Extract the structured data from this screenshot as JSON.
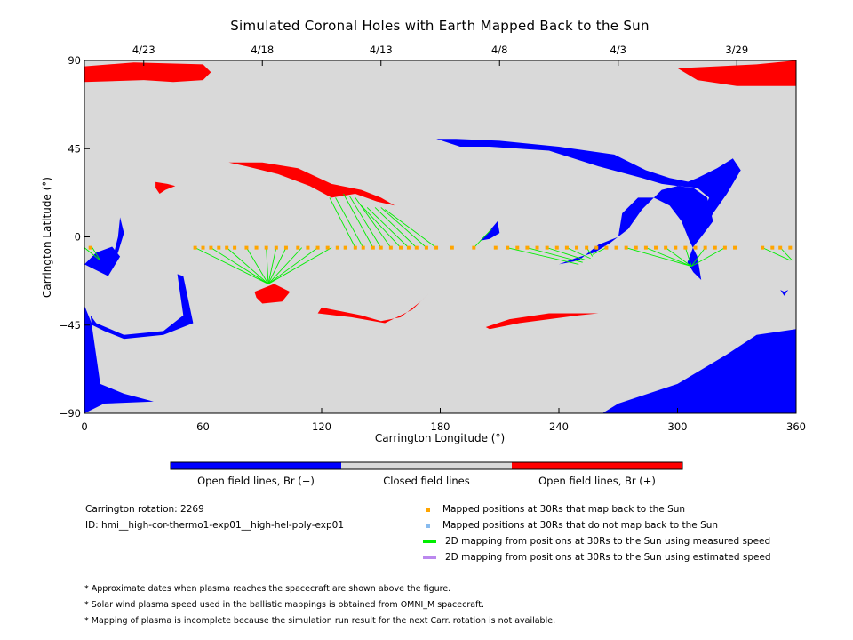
{
  "chart_data": {
    "type": "map",
    "title": "Simulated Coronal Holes with Earth Mapped Back to the Sun",
    "xlabel": "Carrington Longitude (°)",
    "ylabel": "Carrington Latitude (°)",
    "xlim": [
      0,
      360
    ],
    "ylim": [
      -90,
      90
    ],
    "x_ticks": [
      "0",
      "60",
      "120",
      "180",
      "240",
      "300",
      "360"
    ],
    "y_ticks": [
      "90",
      "45",
      "0",
      "−45",
      "−90"
    ],
    "top_axis_dates": [
      {
        "label": "4/23",
        "lon": 30
      },
      {
        "label": "4/18",
        "lon": 90
      },
      {
        "label": "4/13",
        "lon": 150
      },
      {
        "label": "4/8",
        "lon": 210
      },
      {
        "label": "4/3",
        "lon": 270
      },
      {
        "label": "3/29",
        "lon": 330
      }
    ],
    "colors": {
      "closed": "#d9d9d9",
      "open_negative": "#0000ff",
      "open_positive": "#ff0000",
      "mapped_point": "#ffa500",
      "unmapped_point": "#88bbee",
      "measured_line": "#00ee00",
      "estimated_line": "#bb88ee"
    },
    "coronal_holes": [
      {
        "polarity": "positive",
        "points": [
          [
            0,
            87
          ],
          [
            25,
            89
          ],
          [
            60,
            88
          ],
          [
            64,
            84
          ],
          [
            60,
            80
          ],
          [
            45,
            79
          ],
          [
            30,
            80
          ],
          [
            0,
            79
          ]
        ]
      },
      {
        "polarity": "positive",
        "points": [
          [
            360,
            90
          ],
          [
            340,
            88
          ],
          [
            320,
            87
          ],
          [
            300,
            86
          ],
          [
            310,
            80
          ],
          [
            330,
            77
          ],
          [
            360,
            77
          ]
        ]
      },
      {
        "polarity": "positive",
        "points": [
          [
            36,
            28
          ],
          [
            42,
            27
          ],
          [
            46,
            26
          ],
          [
            41,
            24
          ],
          [
            38,
            22
          ],
          [
            36,
            25
          ]
        ]
      },
      {
        "polarity": "positive",
        "points": [
          [
            73,
            38
          ],
          [
            90,
            38
          ],
          [
            108,
            35
          ],
          [
            125,
            27
          ],
          [
            140,
            24
          ],
          [
            150,
            20
          ],
          [
            157,
            16
          ],
          [
            148,
            18
          ],
          [
            137,
            22
          ],
          [
            125,
            20
          ],
          [
            114,
            26
          ],
          [
            98,
            32
          ],
          [
            82,
            36
          ]
        ]
      },
      {
        "polarity": "positive",
        "points": [
          [
            86,
            -28
          ],
          [
            96,
            -24
          ],
          [
            104,
            -28
          ],
          [
            100,
            -33
          ],
          [
            90,
            -34
          ],
          [
            87,
            -31
          ]
        ]
      },
      {
        "polarity": "positive",
        "points": [
          [
            120,
            -36
          ],
          [
            125,
            -37
          ],
          [
            140,
            -40
          ],
          [
            150,
            -43
          ],
          [
            160,
            -41
          ],
          [
            170,
            -33
          ],
          [
            175,
            -28
          ],
          [
            166,
            -37
          ],
          [
            152,
            -44
          ],
          [
            135,
            -41
          ],
          [
            118,
            -39
          ]
        ]
      },
      {
        "polarity": "positive",
        "points": [
          [
            203,
            -46
          ],
          [
            215,
            -42
          ],
          [
            235,
            -39
          ],
          [
            260,
            -39
          ],
          [
            250,
            -40
          ],
          [
            235,
            -42
          ],
          [
            220,
            -44
          ],
          [
            205,
            -47
          ]
        ]
      },
      {
        "polarity": "negative",
        "points": [
          [
            0,
            -14
          ],
          [
            6,
            -17
          ],
          [
            12,
            -20
          ],
          [
            18,
            -10
          ],
          [
            14,
            -5
          ],
          [
            6,
            -8
          ]
        ]
      },
      {
        "polarity": "negative",
        "points": [
          [
            12,
            -15
          ],
          [
            17,
            -8
          ],
          [
            20,
            2
          ],
          [
            18,
            10
          ],
          [
            17,
            0
          ],
          [
            14,
            -12
          ]
        ]
      },
      {
        "polarity": "negative",
        "points": [
          [
            0,
            -35
          ],
          [
            4,
            -45
          ],
          [
            10,
            -48
          ],
          [
            20,
            -52
          ],
          [
            40,
            -50
          ],
          [
            55,
            -44
          ],
          [
            50,
            -20
          ],
          [
            47,
            -19
          ],
          [
            50,
            -40
          ],
          [
            40,
            -48
          ],
          [
            20,
            -50
          ],
          [
            6,
            -44
          ],
          [
            3,
            -40
          ],
          [
            8,
            -75
          ],
          [
            20,
            -80
          ],
          [
            35,
            -84
          ],
          [
            10,
            -85
          ],
          [
            0,
            -90
          ]
        ]
      },
      {
        "polarity": "negative",
        "points": [
          [
            168,
            50
          ],
          [
            178,
            50
          ],
          [
            190,
            46
          ],
          [
            205,
            46
          ],
          [
            235,
            44
          ],
          [
            260,
            36
          ],
          [
            282,
            30
          ],
          [
            292,
            27
          ],
          [
            308,
            25
          ],
          [
            315,
            20
          ],
          [
            318,
            8
          ],
          [
            312,
            0
          ],
          [
            308,
            -5
          ],
          [
            305,
            -13
          ],
          [
            308,
            -18
          ],
          [
            312,
            -22
          ],
          [
            310,
            -10
          ],
          [
            306,
            -2
          ],
          [
            302,
            8
          ],
          [
            296,
            16
          ],
          [
            288,
            20
          ],
          [
            280,
            20
          ],
          [
            272,
            12
          ],
          [
            270,
            0
          ],
          [
            260,
            -4
          ],
          [
            250,
            -12
          ],
          [
            240,
            -14
          ],
          [
            248,
            -11
          ],
          [
            258,
            -8
          ],
          [
            266,
            -3
          ],
          [
            275,
            4
          ],
          [
            282,
            14
          ],
          [
            292,
            24
          ],
          [
            300,
            26
          ],
          [
            306,
            28
          ],
          [
            296,
            30
          ],
          [
            284,
            34
          ],
          [
            268,
            42
          ],
          [
            240,
            46
          ],
          [
            210,
            49
          ],
          [
            188,
            50
          ]
        ]
      },
      {
        "polarity": "negative",
        "points": [
          [
            300,
            26
          ],
          [
            310,
            30
          ],
          [
            320,
            35
          ],
          [
            328,
            40
          ],
          [
            332,
            34
          ],
          [
            325,
            22
          ],
          [
            318,
            12
          ],
          [
            314,
            4
          ],
          [
            312,
            10
          ],
          [
            316,
            20
          ],
          [
            310,
            25
          ]
        ]
      },
      {
        "polarity": "negative",
        "points": [
          [
            200,
            -2
          ],
          [
            204,
            2
          ],
          [
            209,
            8
          ],
          [
            210,
            2
          ],
          [
            205,
            -1
          ]
        ]
      },
      {
        "polarity": "negative",
        "points": [
          [
            360,
            -47
          ],
          [
            340,
            -50
          ],
          [
            325,
            -60
          ],
          [
            300,
            -75
          ],
          [
            270,
            -85
          ],
          [
            262,
            -90
          ],
          [
            360,
            -90
          ]
        ]
      },
      {
        "polarity": "negative",
        "points": [
          [
            352,
            -27
          ],
          [
            354,
            -28
          ],
          [
            356,
            -27
          ],
          [
            354,
            -30
          ]
        ]
      }
    ],
    "mapped_positions_lon": [
      3,
      56,
      60,
      64,
      68,
      72,
      76,
      82,
      87,
      92,
      97,
      102,
      108,
      113,
      118,
      123,
      128,
      132,
      137,
      141,
      146,
      150,
      155,
      160,
      164,
      168,
      173,
      178,
      186,
      197,
      208,
      214,
      219,
      224,
      229,
      234,
      239,
      244,
      249,
      254,
      259,
      264,
      269,
      274,
      279,
      284,
      289,
      294,
      299,
      304,
      309,
      314,
      319,
      324,
      329,
      343,
      348,
      352,
      357
    ],
    "mapped_positions_lat": -5.5,
    "measured_lines": [
      {
        "from_lon": 0,
        "to": [
          8,
          -12
        ]
      },
      {
        "from_lon": 4,
        "to": [
          8,
          -12
        ]
      },
      {
        "from_lon": 56,
        "to": [
          93,
          -24
        ]
      },
      {
        "from_lon": 64,
        "to": [
          93,
          -24
        ]
      },
      {
        "from_lon": 72,
        "to": [
          93,
          -24
        ]
      },
      {
        "from_lon": 82,
        "to": [
          93,
          -24
        ]
      },
      {
        "from_lon": 92,
        "to": [
          93,
          -24
        ]
      },
      {
        "from_lon": 97,
        "to": [
          93,
          -24
        ]
      },
      {
        "from_lon": 102,
        "to": [
          93,
          -24
        ]
      },
      {
        "from_lon": 110,
        "to": [
          93,
          -24
        ]
      },
      {
        "from_lon": 118,
        "to": [
          93,
          -24
        ]
      },
      {
        "from_lon": 125,
        "to": [
          93,
          -24
        ]
      },
      {
        "from_lon": 137,
        "to": [
          124,
          20
        ]
      },
      {
        "from_lon": 141,
        "to": [
          127,
          20
        ]
      },
      {
        "from_lon": 146,
        "to": [
          131,
          22
        ]
      },
      {
        "from_lon": 150,
        "to": [
          134,
          21
        ]
      },
      {
        "from_lon": 155,
        "to": [
          137,
          20
        ]
      },
      {
        "from_lon": 160,
        "to": [
          140,
          16
        ]
      },
      {
        "from_lon": 164,
        "to": [
          143,
          15
        ]
      },
      {
        "from_lon": 168,
        "to": [
          147,
          15
        ]
      },
      {
        "from_lon": 173,
        "to": [
          150,
          15
        ]
      },
      {
        "from_lon": 178,
        "to": [
          152,
          14
        ]
      },
      {
        "from_lon": 197,
        "to": [
          206,
          4
        ]
      },
      {
        "from_lon": 214,
        "to": [
          250,
          -14
        ]
      },
      {
        "from_lon": 224,
        "to": [
          252,
          -13
        ]
      },
      {
        "from_lon": 234,
        "to": [
          254,
          -12
        ]
      },
      {
        "from_lon": 244,
        "to": [
          256,
          -11
        ]
      },
      {
        "from_lon": 254,
        "to": [
          257,
          -10
        ]
      },
      {
        "from_lon": 264,
        "to": [
          257,
          -9
        ]
      },
      {
        "from_lon": 274,
        "to": [
          307,
          -15
        ]
      },
      {
        "from_lon": 284,
        "to": [
          307,
          -15
        ]
      },
      {
        "from_lon": 294,
        "to": [
          307,
          -15
        ]
      },
      {
        "from_lon": 304,
        "to": [
          307,
          -15
        ]
      },
      {
        "from_lon": 314,
        "to": [
          307,
          -15
        ]
      },
      {
        "from_lon": 324,
        "to": [
          307,
          -15
        ]
      },
      {
        "from_lon": 343,
        "to": [
          357,
          -12
        ]
      },
      {
        "from_lon": 352,
        "to": [
          358,
          -12
        ]
      }
    ]
  },
  "colorbar": {
    "labels": [
      "Open field lines, Br (−)",
      "Closed field lines",
      "Open field lines, Br (+)"
    ]
  },
  "info": {
    "rotation": "Carrington rotation: 2269",
    "id": "ID: hmi__high-cor-thermo1-exp01__high-hel-poly-exp01"
  },
  "legend": {
    "mapped": "Mapped positions at 30Rs that map back to the Sun",
    "unmapped": "Mapped positions at 30Rs that do not map back to the Sun",
    "measured": "2D mapping from positions at 30Rs to the Sun using measured speed",
    "estimated": "2D mapping from positions at 30Rs to the Sun using estimated speed"
  },
  "notes": [
    "* Approximate dates when plasma reaches the spacecraft are shown above the figure.",
    "* Solar wind plasma speed used in the ballistic mappings is obtained from OMNI_M spacecraft.",
    "* Mapping of plasma is incomplete because the simulation run result for the next Carr. rotation is not available."
  ]
}
